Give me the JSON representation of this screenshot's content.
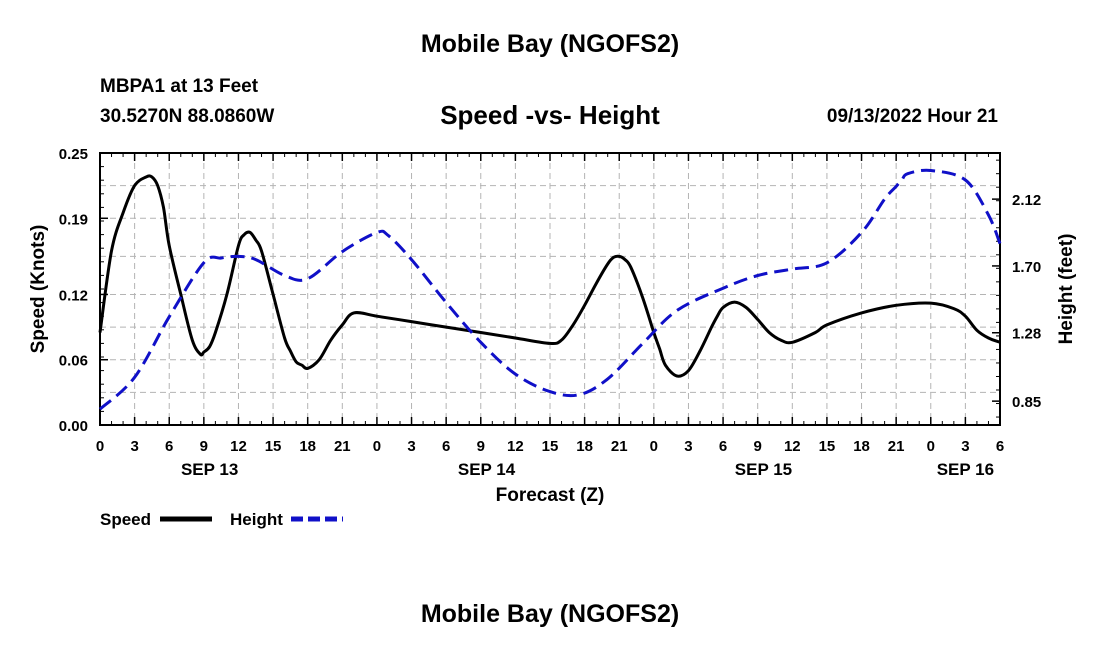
{
  "header": {
    "title": "Mobile Bay (NGOFS2)",
    "station": "MBPA1 at 13 Feet",
    "coordinates": "30.5270N  88.0860W",
    "subtitle": "Speed -vs- Height",
    "datetime": "09/13/2022 Hour 21"
  },
  "footer": {
    "title": "Mobile Bay (NGOFS2)"
  },
  "colors": {
    "speed": "#000000",
    "height": "#1010c8",
    "grid": "#b4b4b4"
  },
  "chart_data": {
    "type": "line",
    "title": "Speed -vs- Height",
    "xlabel": "Forecast (Z)",
    "ylabel": "Speed (Knots)",
    "y2label": "Height (feet)",
    "xlim": [
      0,
      78
    ],
    "ylim": [
      0,
      0.25
    ],
    "y2lim": [
      0.7,
      2.41
    ],
    "x_ticks": [
      0,
      3,
      6,
      9,
      12,
      15,
      18,
      21,
      24,
      27,
      30,
      33,
      36,
      39,
      42,
      45,
      48,
      51,
      54,
      57,
      60,
      63,
      66,
      69,
      72,
      75,
      78
    ],
    "x_tick_labels": [
      "0",
      "3",
      "6",
      "9",
      "12",
      "15",
      "18",
      "21",
      "0",
      "3",
      "6",
      "9",
      "12",
      "15",
      "18",
      "21",
      "0",
      "3",
      "6",
      "9",
      "12",
      "15",
      "18",
      "21",
      "0",
      "3",
      "6"
    ],
    "date_labels": [
      {
        "x": 9.5,
        "label": "SEP 13"
      },
      {
        "x": 33.5,
        "label": "SEP 14"
      },
      {
        "x": 57.5,
        "label": "SEP 15"
      },
      {
        "x": 75,
        "label": "SEP 16"
      }
    ],
    "y_ticks": [
      0,
      0.06,
      0.12,
      0.19,
      0.25
    ],
    "y_tick_labels": [
      "0.00",
      "0.06",
      "0.12",
      "0.19",
      "0.25"
    ],
    "y2_ticks": [
      0.85,
      1.28,
      1.7,
      2.12
    ],
    "y2_tick_labels": [
      "0.85",
      "1.28",
      "1.70",
      "2.12"
    ],
    "legend": [
      {
        "name": "Speed",
        "style": "solid"
      },
      {
        "name": "Height",
        "style": "dashed"
      }
    ],
    "series": [
      {
        "name": "Speed",
        "axis": "left",
        "style": "solid",
        "x": [
          0,
          1,
          2,
          3,
          4,
          4.5,
          5,
          5.5,
          6,
          7,
          8,
          8.7,
          9,
          9.5,
          10,
          11,
          12,
          12.5,
          13,
          13.5,
          14,
          15,
          16,
          16.5,
          17,
          17.5,
          18,
          19,
          20,
          21,
          22,
          24,
          27,
          30,
          33,
          36,
          39,
          40,
          41,
          42,
          43,
          44,
          44.5,
          45,
          45.5,
          46,
          47,
          48,
          48.5,
          49,
          50,
          51,
          52,
          53,
          53.5,
          54,
          55,
          56,
          57,
          58,
          59,
          60,
          62,
          63,
          66,
          69,
          72,
          74,
          75,
          76,
          77,
          78
        ],
        "values": [
          0.085,
          0.16,
          0.195,
          0.22,
          0.228,
          0.228,
          0.22,
          0.2,
          0.165,
          0.12,
          0.078,
          0.065,
          0.067,
          0.072,
          0.085,
          0.12,
          0.165,
          0.175,
          0.177,
          0.17,
          0.16,
          0.12,
          0.08,
          0.068,
          0.058,
          0.055,
          0.052,
          0.06,
          0.078,
          0.092,
          0.103,
          0.1,
          0.095,
          0.09,
          0.085,
          0.08,
          0.075,
          0.078,
          0.092,
          0.11,
          0.13,
          0.148,
          0.154,
          0.155,
          0.152,
          0.145,
          0.118,
          0.085,
          0.07,
          0.055,
          0.045,
          0.05,
          0.068,
          0.09,
          0.1,
          0.108,
          0.113,
          0.108,
          0.097,
          0.085,
          0.078,
          0.076,
          0.085,
          0.092,
          0.103,
          0.11,
          0.112,
          0.107,
          0.1,
          0.087,
          0.08,
          0.076
        ],
        "values_tail": []
      },
      {
        "name": "Height",
        "axis": "right",
        "style": "dashed",
        "x": [
          0,
          3,
          6,
          9,
          10.5,
          12,
          13.5,
          16,
          18,
          21,
          24,
          25,
          27,
          30,
          33,
          36,
          39,
          41.5,
          44,
          47,
          50,
          54,
          57,
          60,
          63,
          66,
          68,
          69,
          69.5,
          70,
          72,
          75,
          77,
          78
        ],
        "values": [
          0.8,
          1.0,
          1.38,
          1.72,
          1.75,
          1.76,
          1.74,
          1.64,
          1.62,
          1.79,
          1.91,
          1.89,
          1.74,
          1.47,
          1.22,
          1.02,
          0.91,
          0.89,
          0.99,
          1.21,
          1.42,
          1.56,
          1.64,
          1.68,
          1.72,
          1.91,
          2.12,
          2.2,
          2.24,
          2.28,
          2.3,
          2.24,
          2.02,
          1.84
        ]
      }
    ]
  }
}
